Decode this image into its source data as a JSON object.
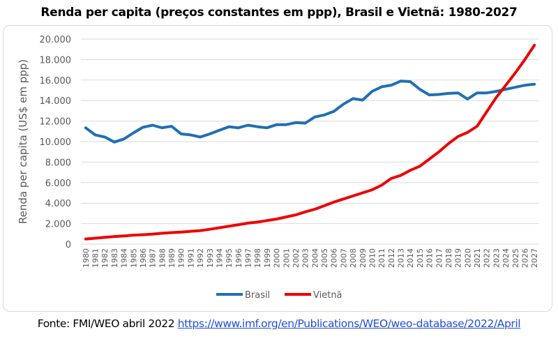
{
  "chart_data": {
    "type": "line",
    "title": "Renda per capita (preços constantes em ppp), Brasil e Vietnã: 1980-2027",
    "xlabel": "",
    "ylabel": "Renda per capita (US$ em ppp)",
    "ylim": [
      0,
      20000
    ],
    "yticks": [
      0,
      2000,
      4000,
      6000,
      8000,
      10000,
      12000,
      14000,
      16000,
      18000,
      20000
    ],
    "ytick_labels": [
      "0",
      "2.000",
      "4.000",
      "6.000",
      "8.000",
      "10.000",
      "12.000",
      "14.000",
      "16.000",
      "18.000",
      "20.000"
    ],
    "grid": true,
    "legend_position": "bottom",
    "x": [
      1980,
      1981,
      1982,
      1983,
      1984,
      1985,
      1986,
      1987,
      1988,
      1989,
      1990,
      1991,
      1992,
      1993,
      1994,
      1995,
      1996,
      1997,
      1998,
      1999,
      2000,
      2001,
      2002,
      2003,
      2004,
      2005,
      2006,
      2007,
      2008,
      2009,
      2010,
      2011,
      2012,
      2013,
      2014,
      2015,
      2016,
      2017,
      2018,
      2019,
      2020,
      2021,
      2022,
      2023,
      2024,
      2025,
      2026,
      2027
    ],
    "series": [
      {
        "name": "Brasil",
        "color": "#1f6fb5",
        "values": [
          11350,
          10650,
          10450,
          9950,
          10250,
          10850,
          11400,
          11600,
          11350,
          11500,
          10750,
          10650,
          10450,
          10750,
          11100,
          11450,
          11350,
          11600,
          11450,
          11350,
          11650,
          11650,
          11850,
          11800,
          12400,
          12600,
          12950,
          13650,
          14200,
          14050,
          14900,
          15350,
          15500,
          15900,
          15850,
          15100,
          14550,
          14600,
          14700,
          14750,
          14150,
          14750,
          14750,
          14900,
          15100,
          15300,
          15500,
          15600
        ]
      },
      {
        "name": "Vietnã",
        "color": "#ee0000",
        "values": [
          500,
          580,
          660,
          740,
          800,
          880,
          920,
          980,
          1060,
          1120,
          1180,
          1250,
          1320,
          1450,
          1600,
          1750,
          1900,
          2050,
          2150,
          2300,
          2450,
          2650,
          2850,
          3150,
          3400,
          3750,
          4100,
          4400,
          4700,
          5000,
          5300,
          5750,
          6400,
          6700,
          7200,
          7600,
          8300,
          9000,
          9800,
          10500,
          10900,
          11500,
          12900,
          14300,
          15500,
          16700,
          18000,
          19400
        ]
      }
    ]
  },
  "footer": {
    "source_text": "Fonte: FMI/WEO abril 2022 ",
    "link_text": "https://www.imf.org/en/Publications/WEO/weo-database/2022/April"
  }
}
